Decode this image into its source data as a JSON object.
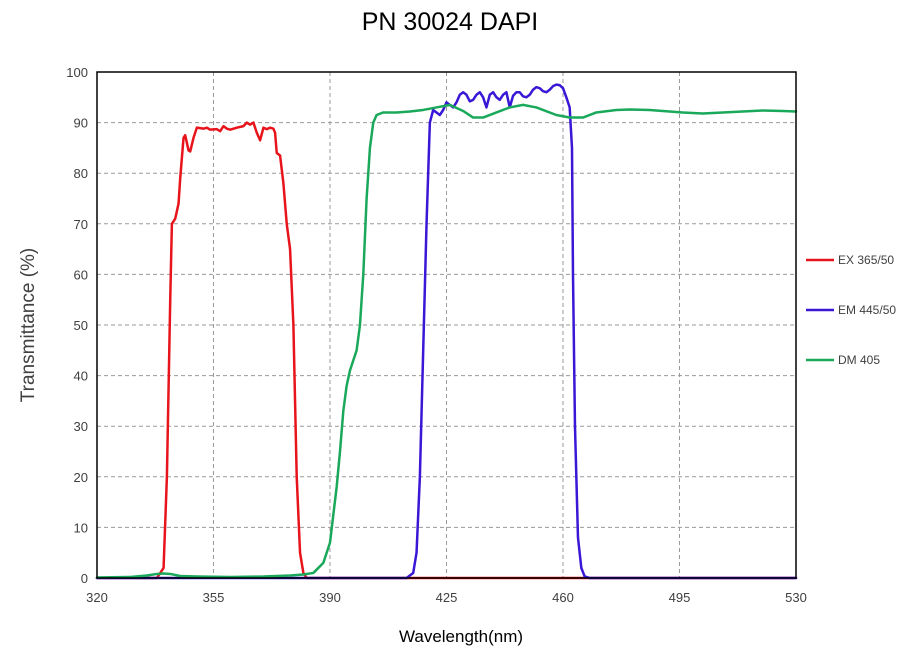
{
  "chart_data": {
    "type": "line",
    "title": "PN 30024 DAPI",
    "xlabel": "Wavelength(nm)",
    "ylabel": "Transmittance (%)",
    "xlim": [
      320,
      530
    ],
    "ylim": [
      0,
      100
    ],
    "xticks": [
      320,
      355,
      390,
      425,
      460,
      495,
      530
    ],
    "yticks": [
      0,
      10,
      20,
      30,
      40,
      50,
      60,
      70,
      80,
      90,
      100
    ],
    "grid": true,
    "legend_position": "right",
    "series": [
      {
        "name": "EX 365/50",
        "color": "#e8141b",
        "points": [
          [
            320,
            0
          ],
          [
            338,
            0
          ],
          [
            340,
            2
          ],
          [
            341,
            20
          ],
          [
            342,
            55
          ],
          [
            342.5,
            70
          ],
          [
            343.5,
            71
          ],
          [
            344.5,
            74
          ],
          [
            345,
            79
          ],
          [
            346,
            87
          ],
          [
            346.5,
            87.5
          ],
          [
            347.5,
            84.5
          ],
          [
            348,
            84.3
          ],
          [
            349,
            87
          ],
          [
            350,
            89
          ],
          [
            352,
            88.8
          ],
          [
            353,
            89
          ],
          [
            354,
            88.6
          ],
          [
            356,
            88.7
          ],
          [
            357,
            88.3
          ],
          [
            358,
            89.3
          ],
          [
            359,
            88.8
          ],
          [
            360,
            88.6
          ],
          [
            362,
            89
          ],
          [
            364,
            89.3
          ],
          [
            365,
            90
          ],
          [
            366,
            89.6
          ],
          [
            367,
            90
          ],
          [
            368,
            88
          ],
          [
            369,
            86.5
          ],
          [
            370,
            89
          ],
          [
            371,
            88.7
          ],
          [
            372,
            89
          ],
          [
            373,
            88.8
          ],
          [
            373.5,
            88
          ],
          [
            374,
            84
          ],
          [
            375,
            83.5
          ],
          [
            376,
            78
          ],
          [
            377,
            70
          ],
          [
            378,
            65
          ],
          [
            379,
            50
          ],
          [
            380,
            20
          ],
          [
            381,
            5
          ],
          [
            382,
            1
          ],
          [
            383,
            0
          ],
          [
            530,
            0
          ]
        ]
      },
      {
        "name": "EM 445/50",
        "color": "#3a17d6",
        "points": [
          [
            320,
            0
          ],
          [
            413,
            0
          ],
          [
            415,
            1
          ],
          [
            416,
            5
          ],
          [
            417,
            20
          ],
          [
            418,
            45
          ],
          [
            419,
            70
          ],
          [
            420,
            90
          ],
          [
            421,
            92.5
          ],
          [
            422,
            92
          ],
          [
            423,
            91.5
          ],
          [
            424,
            92.5
          ],
          [
            425,
            94
          ],
          [
            426,
            93.5
          ],
          [
            427,
            93
          ],
          [
            428,
            94
          ],
          [
            429,
            95.5
          ],
          [
            430,
            96
          ],
          [
            431,
            95.5
          ],
          [
            432,
            94.2
          ],
          [
            433,
            94.5
          ],
          [
            434,
            95.5
          ],
          [
            435,
            96
          ],
          [
            436,
            95
          ],
          [
            437,
            93
          ],
          [
            438,
            95.5
          ],
          [
            439,
            96
          ],
          [
            440,
            95
          ],
          [
            441,
            94.5
          ],
          [
            442,
            95.5
          ],
          [
            443,
            96
          ],
          [
            444,
            93
          ],
          [
            445,
            95.3
          ],
          [
            446,
            96
          ],
          [
            447,
            96
          ],
          [
            448,
            95.2
          ],
          [
            449,
            95
          ],
          [
            450,
            95.5
          ],
          [
            451,
            96.5
          ],
          [
            452,
            97
          ],
          [
            453,
            96.8
          ],
          [
            454,
            96.2
          ],
          [
            455,
            96
          ],
          [
            456,
            96.5
          ],
          [
            457,
            97.2
          ],
          [
            458,
            97.5
          ],
          [
            459,
            97.4
          ],
          [
            460,
            96.8
          ],
          [
            461,
            95
          ],
          [
            462,
            93
          ],
          [
            462.7,
            85
          ],
          [
            463,
            60
          ],
          [
            463.6,
            30
          ],
          [
            464.5,
            8
          ],
          [
            465.5,
            2
          ],
          [
            466.5,
            0.3
          ],
          [
            468,
            0
          ],
          [
            530,
            0
          ]
        ]
      },
      {
        "name": "DM 405",
        "color": "#1aa85a",
        "points": [
          [
            320,
            0.1
          ],
          [
            330,
            0.2
          ],
          [
            335,
            0.5
          ],
          [
            338,
            0.8
          ],
          [
            340,
            0.9
          ],
          [
            342,
            0.8
          ],
          [
            345,
            0.4
          ],
          [
            350,
            0.3
          ],
          [
            360,
            0.2
          ],
          [
            370,
            0.3
          ],
          [
            378,
            0.5
          ],
          [
            382,
            0.7
          ],
          [
            385,
            1
          ],
          [
            388,
            3
          ],
          [
            390,
            7
          ],
          [
            392,
            18
          ],
          [
            393,
            25
          ],
          [
            394,
            33
          ],
          [
            395,
            38
          ],
          [
            396,
            41
          ],
          [
            397,
            43
          ],
          [
            398,
            45
          ],
          [
            399,
            50
          ],
          [
            400,
            60
          ],
          [
            401,
            75
          ],
          [
            402,
            85
          ],
          [
            403,
            90
          ],
          [
            404,
            91.5
          ],
          [
            406,
            92
          ],
          [
            410,
            92
          ],
          [
            414,
            92.2
          ],
          [
            418,
            92.5
          ],
          [
            422,
            93
          ],
          [
            426,
            93.5
          ],
          [
            430,
            92.3
          ],
          [
            433,
            91
          ],
          [
            436,
            91
          ],
          [
            440,
            92
          ],
          [
            444,
            93
          ],
          [
            448,
            93.5
          ],
          [
            452,
            93
          ],
          [
            458,
            91.5
          ],
          [
            462,
            91
          ],
          [
            466,
            91
          ],
          [
            470,
            92
          ],
          [
            476,
            92.5
          ],
          [
            480,
            92.6
          ],
          [
            486,
            92.5
          ],
          [
            490,
            92.3
          ],
          [
            496,
            92
          ],
          [
            502,
            91.8
          ],
          [
            508,
            92
          ],
          [
            514,
            92.2
          ],
          [
            520,
            92.4
          ],
          [
            526,
            92.3
          ],
          [
            530,
            92.2
          ]
        ]
      }
    ]
  }
}
